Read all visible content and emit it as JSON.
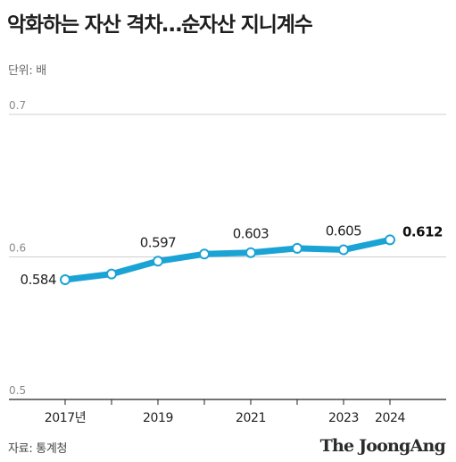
{
  "title": "악화하는 자산 격차…순자산 지니계수",
  "unit_label": "단위: 배",
  "source": "자료: 통계청",
  "brand": "The JoongAng",
  "colors": {
    "line": "#1aa3d4",
    "grid": "#cfcfcf",
    "axis": "#222222"
  },
  "chart_data": {
    "type": "line",
    "title": "악화하는 자산 격차…순자산 지니계수",
    "x": [
      2017,
      2018,
      2019,
      2020,
      2021,
      2022,
      2023,
      2024
    ],
    "y": [
      0.584,
      0.588,
      0.597,
      0.602,
      0.603,
      0.606,
      0.605,
      0.612
    ],
    "labeled_points": [
      {
        "x": 2017,
        "label": "0.584"
      },
      {
        "x": 2019,
        "label": "0.597"
      },
      {
        "x": 2021,
        "label": "0.603"
      },
      {
        "x": 2023,
        "label": "0.605"
      },
      {
        "x": 2024,
        "label": "0.612",
        "emphasis": true
      }
    ],
    "x_tick_labels": [
      {
        "x": 2017,
        "label": "2017년"
      },
      {
        "x": 2019,
        "label": "2019"
      },
      {
        "x": 2021,
        "label": "2021"
      },
      {
        "x": 2023,
        "label": "2023"
      },
      {
        "x": 2024,
        "label": "2024"
      }
    ],
    "y_ticks": [
      0.5,
      0.6,
      0.7
    ],
    "y_tick_labels": [
      "0.5",
      "0.6",
      "0.7"
    ],
    "ylim": [
      0.5,
      0.7
    ],
    "grid": true,
    "xlabel": "",
    "ylabel": ""
  }
}
